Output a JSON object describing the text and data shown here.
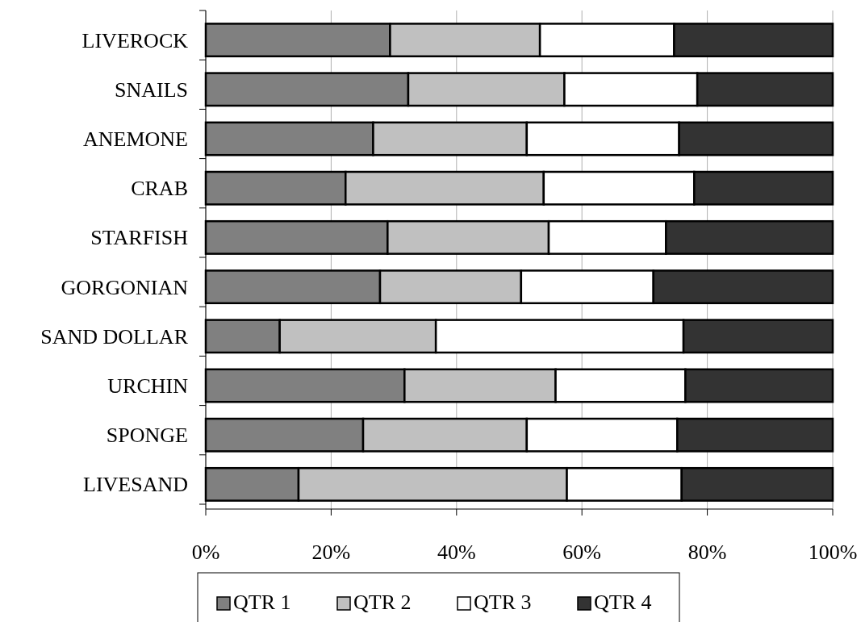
{
  "chart_data": {
    "type": "bar",
    "orientation": "horizontal",
    "stacked": true,
    "categories": [
      "LIVEROCK",
      "SNAILS",
      "ANEMONE",
      "CRAB",
      "STARFISH",
      "GORGONIAN",
      "SAND DOLLAR",
      "URCHIN",
      "SPONGE",
      "LIVESAND"
    ],
    "series": [
      {
        "name": "QTR 1",
        "color": "#808080",
        "values": [
          29.4,
          32.3,
          26.7,
          22.3,
          29.0,
          27.8,
          11.8,
          31.7,
          25.1,
          14.8
        ]
      },
      {
        "name": "QTR 2",
        "color": "#c0c0c0",
        "values": [
          23.9,
          24.9,
          24.5,
          31.6,
          25.7,
          22.5,
          24.9,
          24.1,
          26.1,
          42.8
        ]
      },
      {
        "name": "QTR 3",
        "color": "#ffffff",
        "values": [
          21.4,
          21.2,
          24.3,
          24.0,
          18.7,
          21.1,
          39.5,
          20.7,
          24.0,
          18.3
        ]
      },
      {
        "name": "QTR 4",
        "color": "#333333",
        "values": [
          25.3,
          21.6,
          24.5,
          22.1,
          26.6,
          28.6,
          23.8,
          23.5,
          24.8,
          24.1
        ]
      }
    ],
    "xlim": [
      0,
      100
    ],
    "xticks": [
      {
        "value": 0,
        "label": "0%"
      },
      {
        "value": 20,
        "label": "20%"
      },
      {
        "value": 40,
        "label": "40%"
      },
      {
        "value": 60,
        "label": "60%"
      },
      {
        "value": 80,
        "label": "80%"
      },
      {
        "value": 100,
        "label": "100%"
      }
    ],
    "grid": "x",
    "legend": "bottom"
  }
}
